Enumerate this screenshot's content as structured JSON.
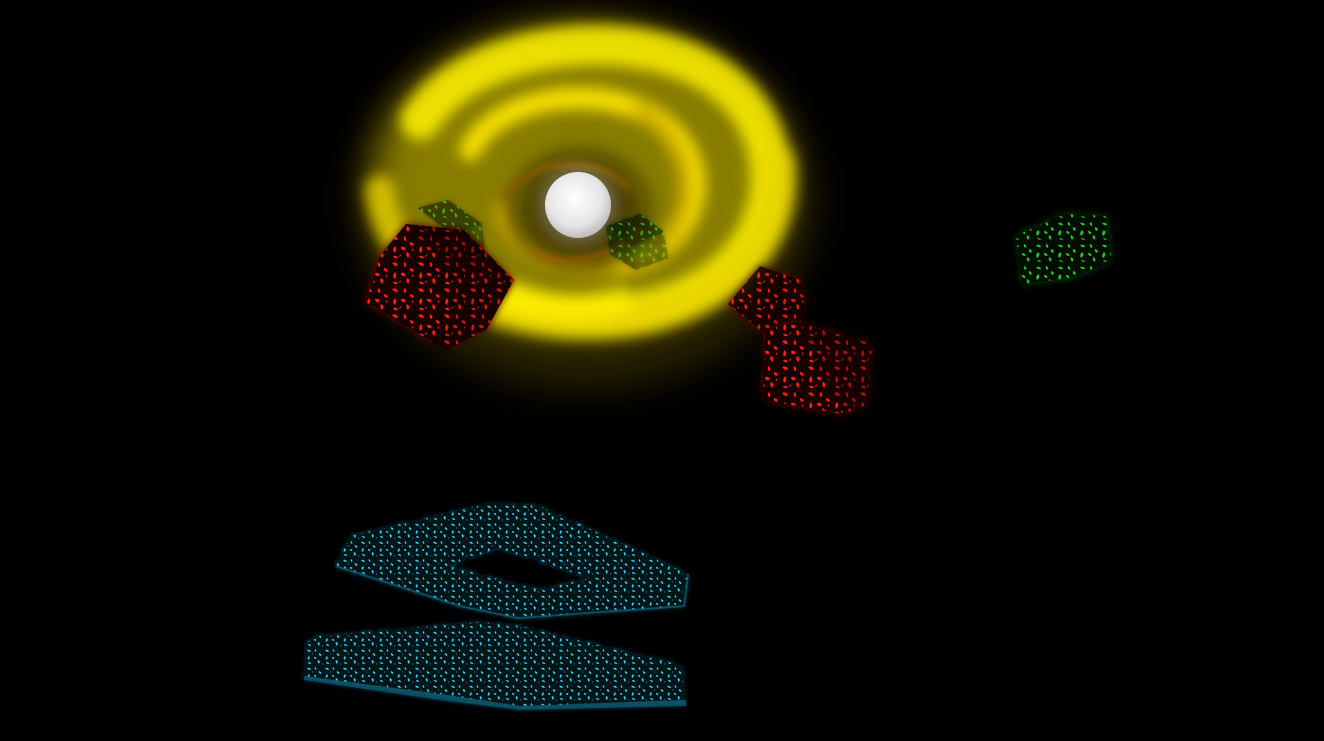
{
  "scene": {
    "background_color": "#000000",
    "objects": [
      {
        "name": "swirl-vortex",
        "kind": "glowing swirl",
        "color": "#f2e600"
      },
      {
        "name": "center-orb",
        "kind": "sphere",
        "color": "#e6e6e6"
      },
      {
        "name": "red-cube-large",
        "kind": "cube",
        "color": "#ff1a10"
      },
      {
        "name": "red-cube-small",
        "kind": "cube",
        "color": "#ff1a10"
      },
      {
        "name": "red-cube-right",
        "kind": "cube",
        "color": "#ff1a10"
      },
      {
        "name": "green-cube-right",
        "kind": "cube",
        "color": "#19d21e"
      },
      {
        "name": "green-cube-left-ghost",
        "kind": "cube",
        "color": "#19d21e"
      },
      {
        "name": "green-cube-center-ghost",
        "kind": "cube",
        "color": "#19d21e"
      },
      {
        "name": "cyan-frame-upper",
        "kind": "square frame",
        "color": "#1ec8f0"
      },
      {
        "name": "cyan-frame-lower",
        "kind": "flat slab",
        "color": "#1ec8f0"
      }
    ]
  }
}
